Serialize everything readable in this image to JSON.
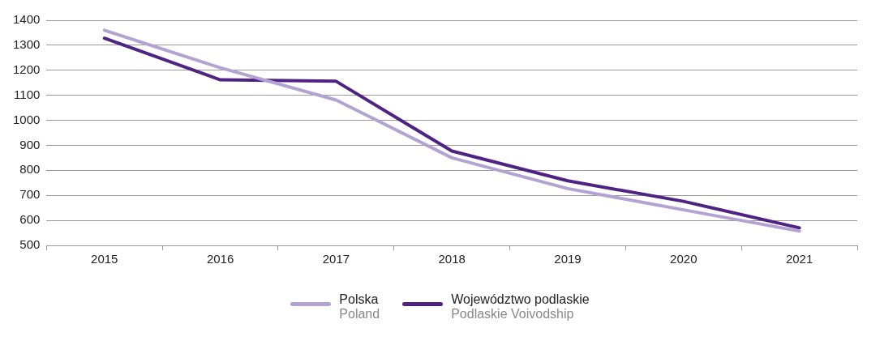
{
  "chart_data": {
    "type": "line",
    "categories": [
      "2015",
      "2016",
      "2017",
      "2018",
      "2019",
      "2020",
      "2021"
    ],
    "series": [
      {
        "name": "Polska\nPoland",
        "color": "#b3a3d3",
        "values": [
          1360,
          1210,
          1081,
          850,
          727,
          642,
          557
        ]
      },
      {
        "name": "Województwo podlaskie\nPodlaskie Voivodship",
        "color": "#4f2383",
        "values": [
          1328,
          1162,
          1156,
          877,
          758,
          676,
          570
        ]
      }
    ],
    "ylim": [
      500,
      1400
    ],
    "yticks": [
      500,
      600,
      700,
      800,
      900,
      1000,
      1100,
      1200,
      1300,
      1400
    ],
    "grid": "y",
    "legend": "bottom",
    "marker": "none",
    "line_style": "solid"
  }
}
